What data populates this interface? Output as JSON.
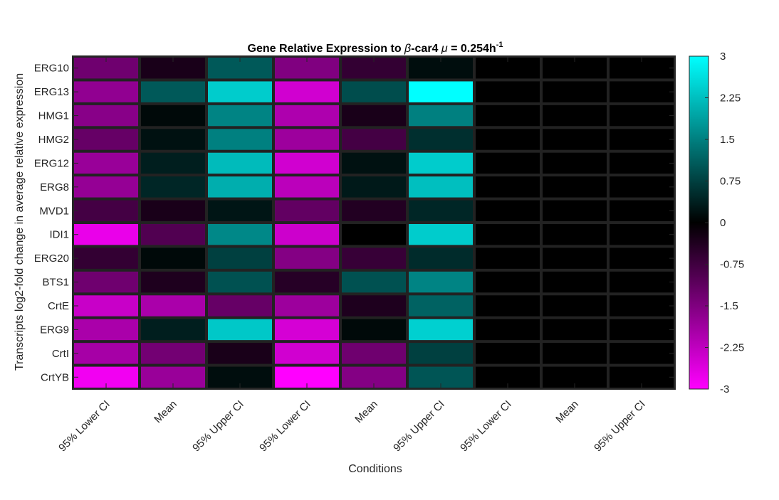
{
  "chart_data": {
    "type": "heatmap",
    "title": {
      "prefix": "Gene Relative Expression to ",
      "beta": "β",
      "mid": "-car4 ",
      "mu": "μ",
      "rate": " = 0.254h",
      "exponent": "-1"
    },
    "xlabel": "Conditions",
    "ylabel": "Transcripts log2-fold change in average relative expression",
    "columns": [
      "95% Lower CI",
      "Mean",
      "95% Upper CI",
      "95% Lower CI",
      "Mean",
      "95% Upper CI",
      "95% Lower CI",
      "Mean",
      "95% Upper CI"
    ],
    "rows": [
      "ERG10",
      "ERG13",
      "HMG1",
      "HMG2",
      "ERG12",
      "ERG8",
      "MVD1",
      "IDI1",
      "ERG20",
      "BTS1",
      "CrtE",
      "ERG9",
      "CrtI",
      "CrtYB"
    ],
    "values": [
      [
        -1.3,
        -0.3,
        1.05,
        -1.5,
        -0.6,
        0.15,
        0,
        0,
        0
      ],
      [
        -1.7,
        1.05,
        2.4,
        -2.45,
        0.9,
        3.0,
        0,
        0,
        0
      ],
      [
        -1.6,
        0.1,
        1.55,
        -2.05,
        -0.3,
        1.5,
        0,
        0,
        0
      ],
      [
        -1.2,
        0.2,
        1.5,
        -1.85,
        -0.8,
        0.55,
        0,
        0,
        0
      ],
      [
        -1.8,
        0.35,
        2.2,
        -2.45,
        0.2,
        2.4,
        0,
        0,
        0
      ],
      [
        -1.75,
        0.45,
        2.05,
        -2.2,
        0.3,
        2.25,
        0,
        0,
        0
      ],
      [
        -0.8,
        -0.3,
        0.25,
        -1.15,
        -0.4,
        0.45,
        0,
        0,
        0
      ],
      [
        -2.75,
        -0.95,
        1.6,
        -2.4,
        0,
        2.4,
        0,
        0,
        0
      ],
      [
        -0.6,
        0.1,
        0.75,
        -1.55,
        -0.65,
        0.5,
        0,
        0,
        0
      ],
      [
        -1.3,
        -0.35,
        0.95,
        -0.45,
        0.95,
        1.55,
        0,
        0,
        0
      ],
      [
        -2.35,
        -2.0,
        -1.2,
        -1.85,
        -0.35,
        1.15,
        0,
        0,
        0
      ],
      [
        -2.0,
        0.35,
        2.35,
        -2.5,
        0.1,
        2.45,
        0,
        0,
        0
      ],
      [
        -1.95,
        -1.35,
        -0.3,
        -2.45,
        -1.3,
        0.75,
        0,
        0,
        0
      ],
      [
        -2.85,
        -1.8,
        0.15,
        -3.0,
        -1.55,
        1.0,
        0,
        0,
        0
      ]
    ],
    "clim": [
      -3,
      3
    ],
    "colorbar_ticks": [
      "3",
      "2.25",
      "1.5",
      "0.75",
      "0",
      "-0.75",
      "-1.5",
      "-2.25",
      "-3"
    ],
    "colors": {
      "positive": "#00ffff",
      "zero": "#000000",
      "negative": "#ff00ff",
      "grid": "#222222"
    }
  }
}
